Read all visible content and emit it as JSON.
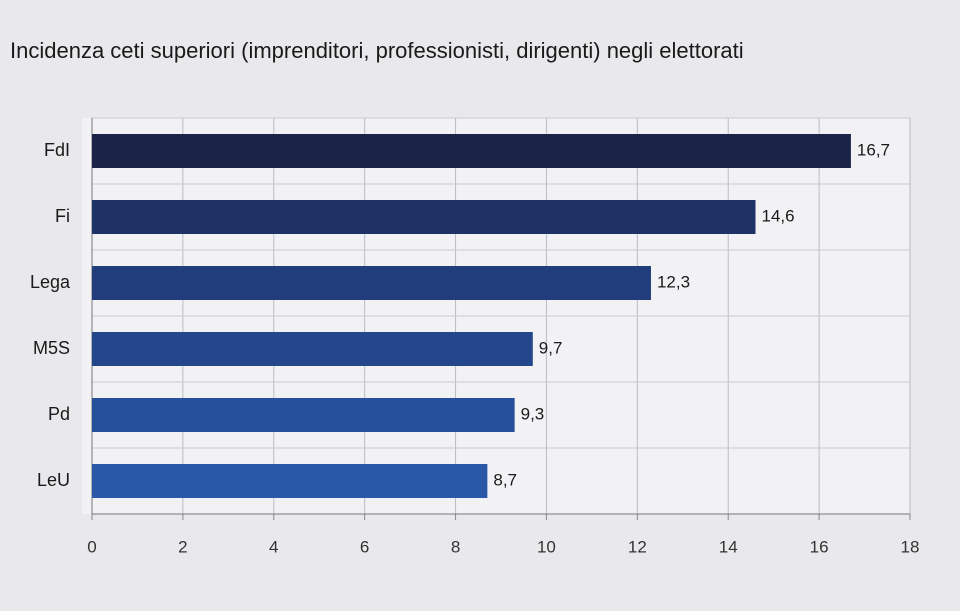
{
  "chart_data": {
    "type": "bar",
    "title": "Incidenza ceti superiori (imprenditori, professionisti, dirigenti) negli elettorati",
    "categories": [
      "FdI",
      "Fi",
      "Lega",
      "M5S",
      "Pd",
      "LeU"
    ],
    "values": [
      16.7,
      14.6,
      12.3,
      9.7,
      9.3,
      8.7
    ],
    "value_labels": [
      "16,7",
      "14,6",
      "12,3",
      "9,7",
      "9,3",
      "8,7"
    ],
    "colors": [
      "#1b2446",
      "#1f3266",
      "#223d7c",
      "#24478c",
      "#27509c",
      "#2a58a8"
    ],
    "xlim": [
      0,
      18
    ],
    "xticks": [
      0,
      2,
      4,
      6,
      8,
      10,
      12,
      14,
      16,
      18
    ],
    "grid": true
  }
}
